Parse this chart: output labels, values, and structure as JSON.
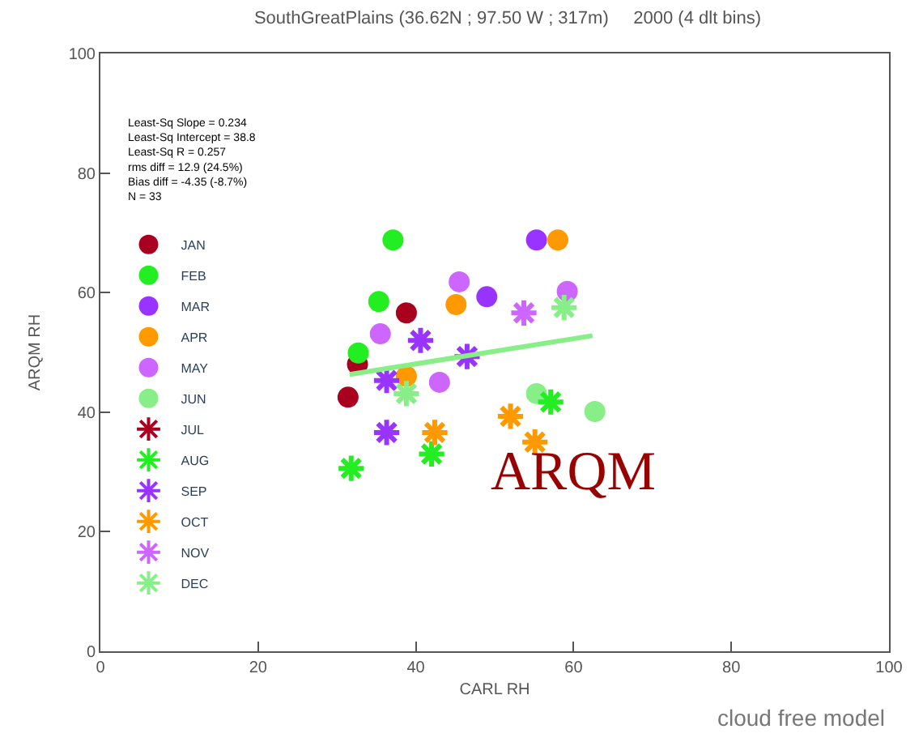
{
  "chart_data": {
    "type": "scatter",
    "title": "SouthGreatPlains (36.62N ; 97.50 W ; 317m)     2000 (4 dlt bins)",
    "xlabel": "CARL RH",
    "ylabel": "ARQM RH",
    "xlim": [
      0,
      100
    ],
    "ylim": [
      0,
      100
    ],
    "xticks": [
      0,
      20,
      40,
      60,
      80,
      100
    ],
    "yticks": [
      0,
      20,
      40,
      60,
      80,
      100
    ],
    "legend": "left",
    "series": [
      {
        "name": "JAN",
        "color": "#a8001e",
        "marker": "circle",
        "x": [
          31.4,
          32.6,
          38.8
        ],
        "values": [
          42.5,
          48,
          56.6
        ]
      },
      {
        "name": "FEB",
        "color": "#22ee22",
        "marker": "circle",
        "x": [
          37.1,
          35.3,
          32.7
        ],
        "values": [
          68.8,
          58.5,
          49.9
        ]
      },
      {
        "name": "MAR",
        "color": "#9933ff",
        "marker": "circle",
        "x": [
          55.3,
          49
        ],
        "values": [
          68.8,
          59.3
        ]
      },
      {
        "name": "APR",
        "color": "#ff9900",
        "marker": "circle",
        "x": [
          58,
          45.1,
          38.8
        ],
        "values": [
          68.8,
          58,
          46
        ]
      },
      {
        "name": "MAY",
        "color": "#cc66ff",
        "marker": "circle",
        "x": [
          45.5,
          35.5,
          59.2,
          43
        ],
        "values": [
          61.8,
          53.1,
          60.2,
          45
        ]
      },
      {
        "name": "JUN",
        "color": "#88ee88",
        "marker": "circle",
        "x": [
          55.3,
          62.7
        ],
        "values": [
          43.1,
          40.1
        ]
      },
      {
        "name": "JUL",
        "color": "#a8001e",
        "marker": "cross"
      },
      {
        "name": "AUG",
        "color": "#22ee22",
        "marker": "cross",
        "x": [
          31.8,
          42,
          57.1
        ],
        "values": [
          30.6,
          33,
          41.7
        ]
      },
      {
        "name": "SEP",
        "color": "#9933ff",
        "marker": "cross",
        "x": [
          40.6,
          36.3,
          46.5,
          36.3
        ],
        "values": [
          52,
          36.6,
          49.3,
          45.3
        ]
      },
      {
        "name": "OCT",
        "color": "#ff9900",
        "marker": "cross",
        "x": [
          42.4,
          52,
          55.1
        ],
        "values": [
          36.6,
          39.3,
          35
        ]
      },
      {
        "name": "NOV",
        "color": "#cc66ff",
        "marker": "cross",
        "x": [
          53.7
        ],
        "values": [
          56.6
        ]
      },
      {
        "name": "DEC",
        "color": "#88ee88",
        "marker": "cross",
        "x": [
          58.8,
          38.8
        ],
        "values": [
          57.5,
          43.1
        ]
      },
      {
        "type": "line",
        "color": "#88ee88",
        "marker": "none",
        "x": [
          31.6,
          62.4
        ],
        "values": [
          46.3,
          52.8
        ]
      }
    ],
    "annotations": [
      "Least-Sq Slope = 0.234\nLeast-Sq Intercept = 38.8\nLeast-Sq R = 0.257\nrms diff = 12.9 (24.5%)\nBias diff = -4.35 (-8.7%)\nN = 33",
      "ARQM",
      "cloud free model"
    ]
  }
}
